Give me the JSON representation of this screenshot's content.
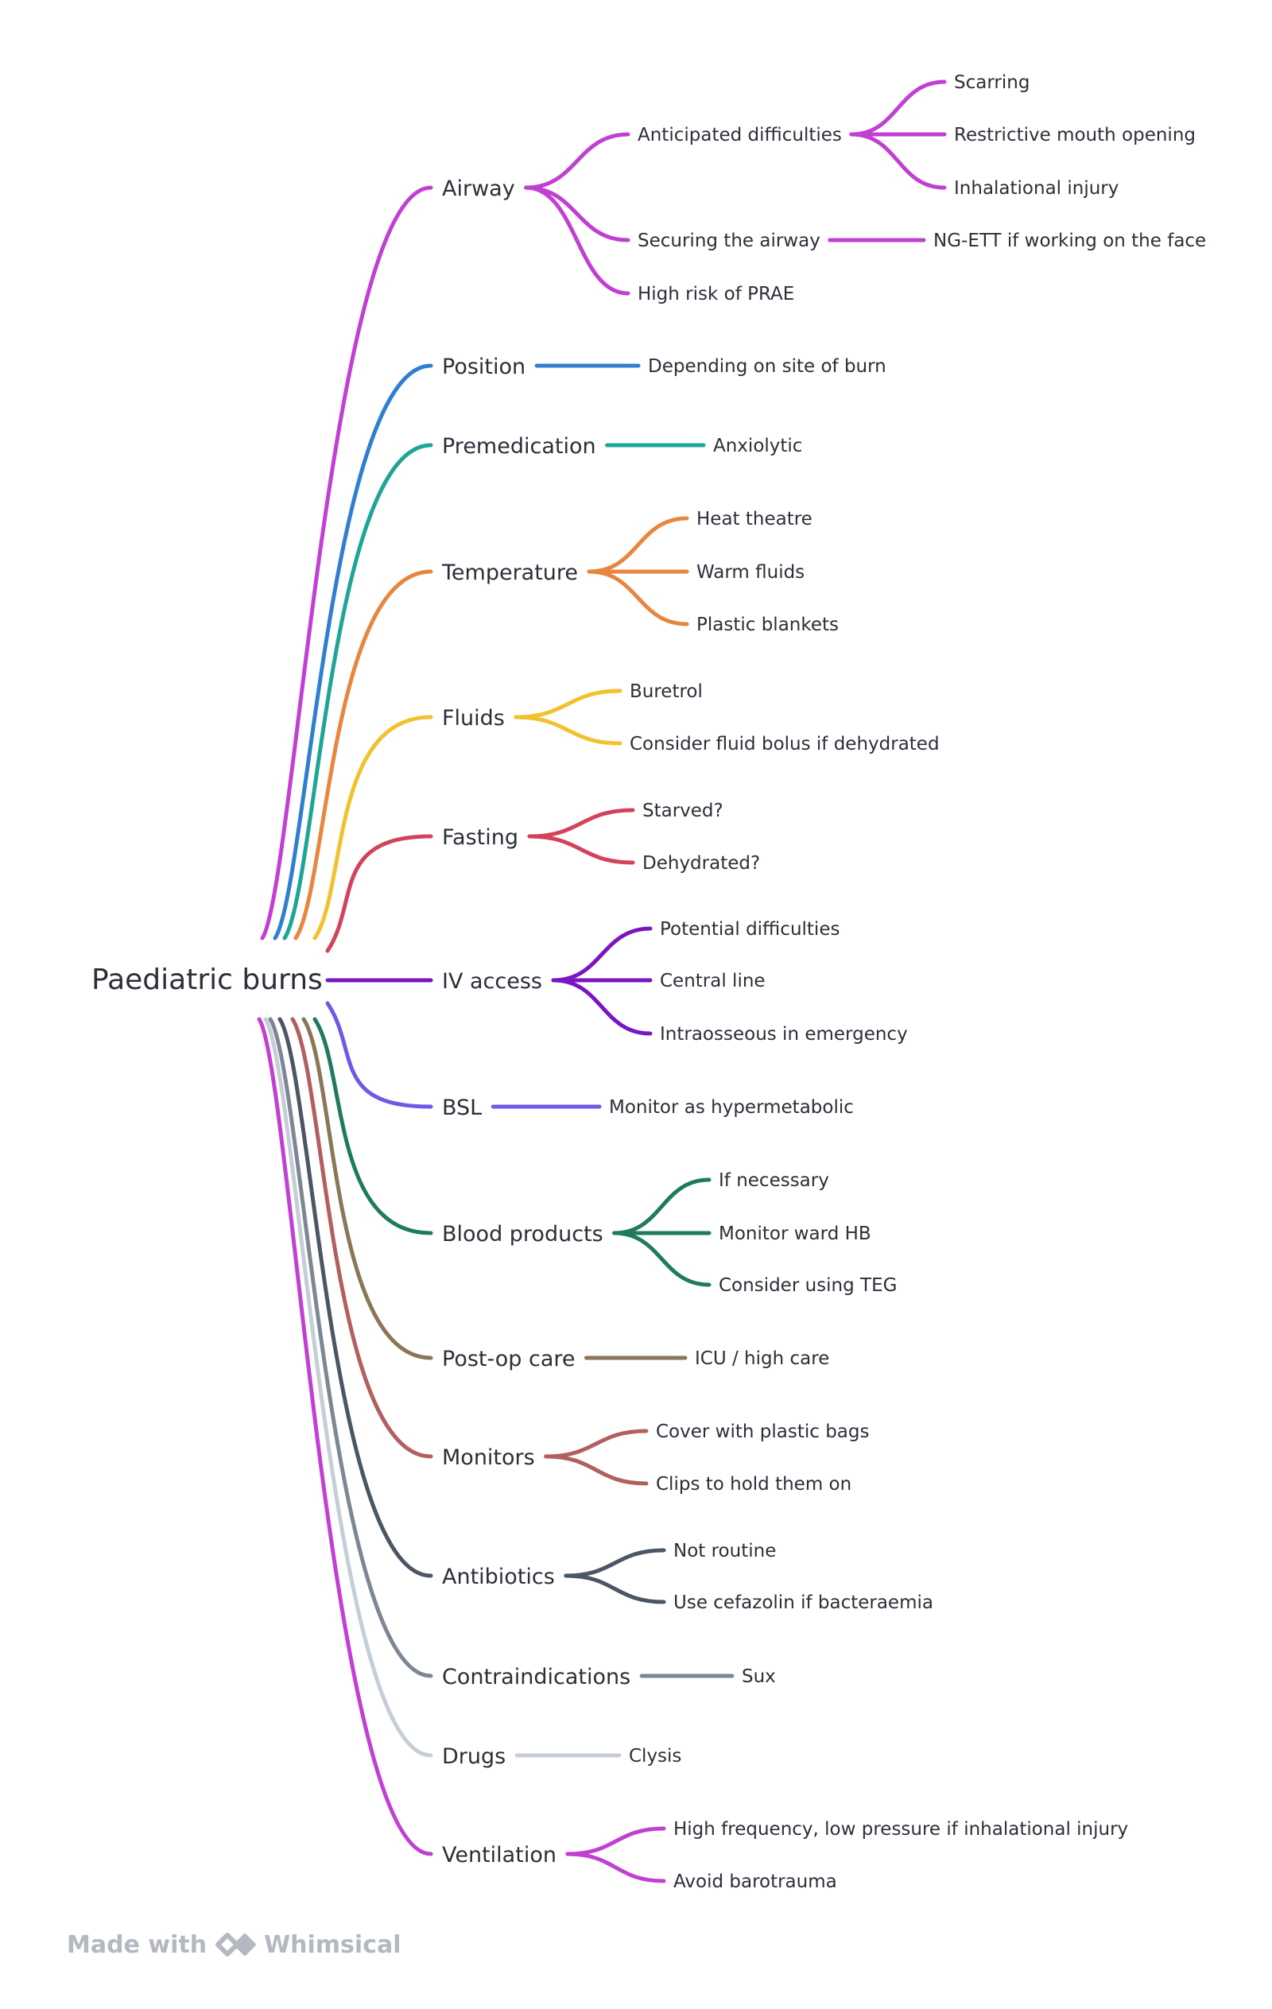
{
  "mindmap": {
    "root": "Paediatric burns",
    "branches": [
      {
        "label": "Airway",
        "color": "#c13fd2",
        "children": [
          {
            "label": "Anticipated difficulties",
            "children": [
              {
                "label": "Scarring"
              },
              {
                "label": "Restrictive mouth opening"
              },
              {
                "label": "Inhalational injury"
              }
            ]
          },
          {
            "label": "Securing the airway",
            "children": [
              {
                "label": "NG-ETT if working on the face"
              }
            ]
          },
          {
            "label": "High risk of PRAE"
          }
        ]
      },
      {
        "label": "Position",
        "color": "#2f7fd1",
        "children": [
          {
            "label": "Depending on site of burn"
          }
        ]
      },
      {
        "label": "Premedication",
        "color": "#1ea597",
        "children": [
          {
            "label": "Anxiolytic"
          }
        ]
      },
      {
        "label": "Temperature",
        "color": "#e8853e",
        "children": [
          {
            "label": "Heat theatre"
          },
          {
            "label": "Warm fluids"
          },
          {
            "label": "Plastic blankets"
          }
        ]
      },
      {
        "label": "Fluids",
        "color": "#f2c12e",
        "children": [
          {
            "label": "Buretrol"
          },
          {
            "label": "Consider fluid bolus if dehydrated"
          }
        ]
      },
      {
        "label": "Fasting",
        "color": "#d2435b",
        "children": [
          {
            "label": "Starved?"
          },
          {
            "label": "Dehydrated?"
          }
        ]
      },
      {
        "label": "IV access",
        "color": "#7716c2",
        "children": [
          {
            "label": "Potential difficulties"
          },
          {
            "label": "Central line"
          },
          {
            "label": "Intraosseous in emergency"
          }
        ]
      },
      {
        "label": "BSL",
        "color": "#6b5be6",
        "children": [
          {
            "label": "Monitor as hypermetabolic"
          }
        ]
      },
      {
        "label": "Blood products",
        "color": "#1f7a5f",
        "children": [
          {
            "label": "If necessary"
          },
          {
            "label": "Monitor ward HB"
          },
          {
            "label": "Consider using TEG"
          }
        ]
      },
      {
        "label": "Post-op care",
        "color": "#8a7758",
        "children": [
          {
            "label": "ICU / high care"
          }
        ]
      },
      {
        "label": "Monitors",
        "color": "#b2605f",
        "children": [
          {
            "label": "Cover with plastic bags"
          },
          {
            "label": "Clips to hold them on"
          }
        ]
      },
      {
        "label": "Antibiotics",
        "color": "#4b5665",
        "children": [
          {
            "label": "Not routine"
          },
          {
            "label": "Use cefazolin if bacteraemia"
          }
        ]
      },
      {
        "label": "Contraindications",
        "color": "#7d8793",
        "children": [
          {
            "label": "Sux"
          }
        ]
      },
      {
        "label": "Drugs",
        "color": "#c5ced6",
        "children": [
          {
            "label": "Clysis"
          }
        ]
      },
      {
        "label": "Ventilation",
        "color": "#c13fd2",
        "children": [
          {
            "label": "High frequency, low pressure if inhalational injury"
          },
          {
            "label": "Avoid barotrauma"
          }
        ]
      }
    ]
  },
  "footer": {
    "made_with": "Made with",
    "brand": "Whimsical",
    "logo_icon": "whimsical-logo-icon",
    "color": "#b3b8c1"
  }
}
